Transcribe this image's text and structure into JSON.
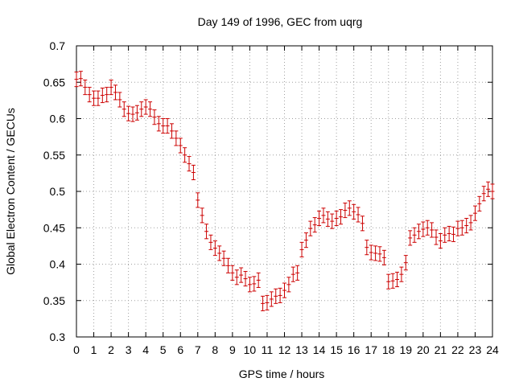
{
  "chart_data": {
    "type": "scatter",
    "title": "Day 149 of 1996, GEC from uqrg",
    "xlabel": "GPS time / hours",
    "ylabel": "Global Electron Content / GECUs",
    "xlim": [
      0,
      24
    ],
    "ylim": [
      0.3,
      0.7
    ],
    "xticks": [
      "0",
      "1",
      "2",
      "3",
      "4",
      "5",
      "6",
      "7",
      "8",
      "9",
      "10",
      "11",
      "12",
      "13",
      "14",
      "15",
      "16",
      "17",
      "18",
      "19",
      "20",
      "21",
      "22",
      "23",
      "24"
    ],
    "yticks": [
      "0.3",
      "0.35",
      "0.4",
      "0.45",
      "0.5",
      "0.55",
      "0.6",
      "0.65",
      "0.7"
    ],
    "grid": true,
    "series_color": "#cc0000",
    "error": 0.01,
    "points": [
      [
        0.0,
        0.654
      ],
      [
        0.25,
        0.655
      ],
      [
        0.5,
        0.643
      ],
      [
        0.75,
        0.633
      ],
      [
        1.0,
        0.628
      ],
      [
        1.25,
        0.628
      ],
      [
        1.5,
        0.632
      ],
      [
        1.75,
        0.633
      ],
      [
        2.0,
        0.643
      ],
      [
        2.25,
        0.636
      ],
      [
        2.5,
        0.626
      ],
      [
        2.75,
        0.613
      ],
      [
        3.0,
        0.607
      ],
      [
        3.25,
        0.606
      ],
      [
        3.5,
        0.608
      ],
      [
        3.75,
        0.613
      ],
      [
        4.0,
        0.616
      ],
      [
        4.25,
        0.613
      ],
      [
        4.5,
        0.602
      ],
      [
        4.75,
        0.593
      ],
      [
        5.0,
        0.59
      ],
      [
        5.25,
        0.59
      ],
      [
        5.5,
        0.583
      ],
      [
        5.75,
        0.573
      ],
      [
        6.0,
        0.563
      ],
      [
        6.25,
        0.55
      ],
      [
        6.5,
        0.538
      ],
      [
        6.75,
        0.526
      ],
      [
        7.0,
        0.488
      ],
      [
        7.25,
        0.467
      ],
      [
        7.5,
        0.445
      ],
      [
        7.75,
        0.43
      ],
      [
        8.0,
        0.422
      ],
      [
        8.25,
        0.415
      ],
      [
        8.5,
        0.408
      ],
      [
        8.75,
        0.398
      ],
      [
        9.0,
        0.388
      ],
      [
        9.25,
        0.382
      ],
      [
        9.5,
        0.385
      ],
      [
        9.75,
        0.38
      ],
      [
        10.0,
        0.372
      ],
      [
        10.25,
        0.373
      ],
      [
        10.5,
        0.378
      ],
      [
        10.75,
        0.346
      ],
      [
        11.0,
        0.347
      ],
      [
        11.25,
        0.352
      ],
      [
        11.5,
        0.356
      ],
      [
        11.75,
        0.357
      ],
      [
        12.0,
        0.364
      ],
      [
        12.25,
        0.372
      ],
      [
        12.5,
        0.386
      ],
      [
        12.75,
        0.388
      ],
      [
        13.0,
        0.42
      ],
      [
        13.25,
        0.433
      ],
      [
        13.5,
        0.449
      ],
      [
        13.75,
        0.454
      ],
      [
        14.0,
        0.463
      ],
      [
        14.25,
        0.467
      ],
      [
        14.5,
        0.462
      ],
      [
        14.75,
        0.459
      ],
      [
        15.0,
        0.463
      ],
      [
        15.25,
        0.465
      ],
      [
        15.5,
        0.474
      ],
      [
        15.75,
        0.477
      ],
      [
        16.0,
        0.472
      ],
      [
        16.25,
        0.468
      ],
      [
        16.5,
        0.456
      ],
      [
        16.75,
        0.423
      ],
      [
        17.0,
        0.416
      ],
      [
        17.25,
        0.415
      ],
      [
        17.5,
        0.414
      ],
      [
        17.75,
        0.409
      ],
      [
        18.0,
        0.376
      ],
      [
        18.25,
        0.377
      ],
      [
        18.5,
        0.379
      ],
      [
        18.75,
        0.386
      ],
      [
        19.0,
        0.402
      ],
      [
        19.25,
        0.436
      ],
      [
        19.5,
        0.44
      ],
      [
        19.75,
        0.445
      ],
      [
        20.0,
        0.448
      ],
      [
        20.25,
        0.45
      ],
      [
        20.5,
        0.447
      ],
      [
        20.75,
        0.437
      ],
      [
        21.0,
        0.432
      ],
      [
        21.25,
        0.44
      ],
      [
        21.5,
        0.442
      ],
      [
        21.75,
        0.441
      ],
      [
        22.0,
        0.449
      ],
      [
        22.25,
        0.45
      ],
      [
        22.5,
        0.453
      ],
      [
        22.75,
        0.457
      ],
      [
        23.0,
        0.47
      ],
      [
        23.25,
        0.483
      ],
      [
        23.5,
        0.497
      ],
      [
        23.75,
        0.503
      ],
      [
        24.0,
        0.5
      ]
    ]
  }
}
